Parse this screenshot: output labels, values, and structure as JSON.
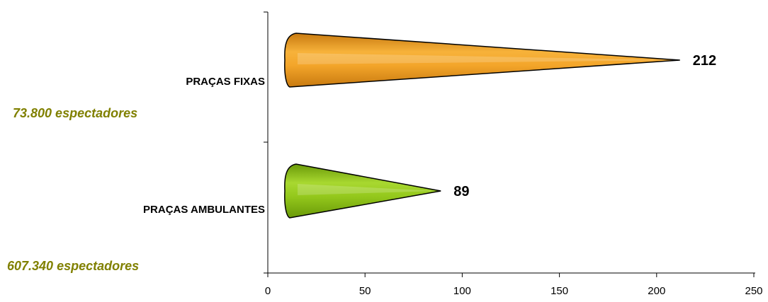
{
  "chart_data": {
    "type": "bar",
    "orientation": "horizontal",
    "categories": [
      "PRAÇAS FIXAS",
      "PRAÇAS AMBULANTES"
    ],
    "values": [
      212,
      89
    ],
    "data_labels": [
      "212",
      "89"
    ],
    "xlim": [
      0,
      250
    ],
    "x_ticks": [
      0,
      50,
      100,
      150,
      200,
      250
    ],
    "x_tick_labels": [
      "0",
      "50",
      "100",
      "150",
      "200",
      "250"
    ],
    "grid": false,
    "legend": "none",
    "bar_colors": [
      "#F0A020",
      "#8CC010"
    ],
    "annotations": [
      "73.800 espectadores",
      "607.340 espectadores"
    ],
    "annotation_color": "#808000"
  }
}
